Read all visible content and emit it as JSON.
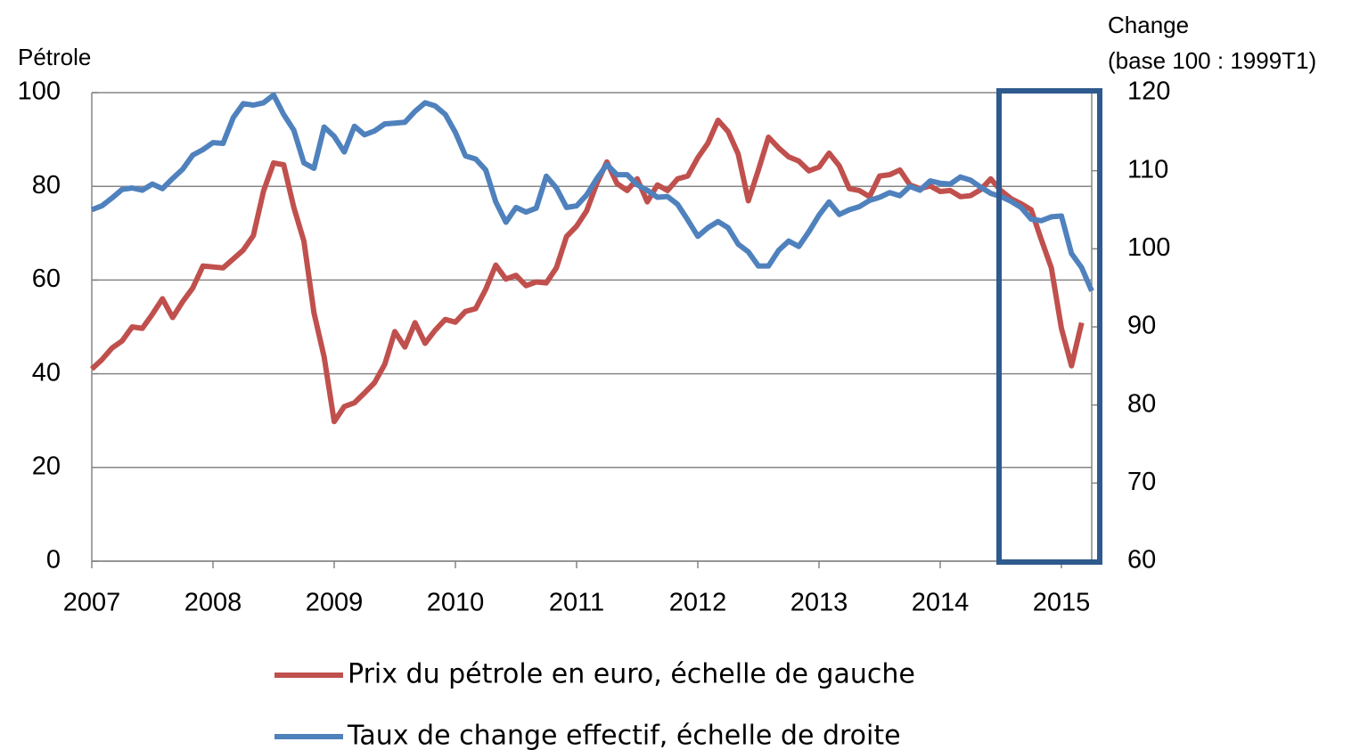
{
  "chart_data": {
    "type": "line",
    "ylabel": "Pétrole",
    "y2label": [
      "Change",
      "(base 100 : 1999T1)"
    ],
    "x": [
      2007,
      2007.083,
      2007.167,
      2007.25,
      2007.333,
      2007.417,
      2007.5,
      2007.583,
      2007.667,
      2007.75,
      2007.833,
      2007.917,
      2008,
      2008.083,
      2008.167,
      2008.25,
      2008.333,
      2008.417,
      2008.5,
      2008.583,
      2008.667,
      2008.75,
      2008.833,
      2008.917,
      2009,
      2009.083,
      2009.167,
      2009.25,
      2009.333,
      2009.417,
      2009.5,
      2009.583,
      2009.667,
      2009.75,
      2009.833,
      2009.917,
      2010,
      2010.083,
      2010.167,
      2010.25,
      2010.333,
      2010.417,
      2010.5,
      2010.583,
      2010.667,
      2010.75,
      2010.833,
      2010.917,
      2011,
      2011.083,
      2011.167,
      2011.25,
      2011.333,
      2011.417,
      2011.5,
      2011.583,
      2011.667,
      2011.75,
      2011.833,
      2011.917,
      2012,
      2012.083,
      2012.167,
      2012.25,
      2012.333,
      2012.417,
      2012.5,
      2012.583,
      2012.667,
      2012.75,
      2012.833,
      2012.917,
      2013,
      2013.083,
      2013.167,
      2013.25,
      2013.333,
      2013.417,
      2013.5,
      2013.583,
      2013.667,
      2013.75,
      2013.833,
      2013.917,
      2014,
      2014.083,
      2014.167,
      2014.25,
      2014.333,
      2014.417,
      2014.5,
      2014.583,
      2014.667,
      2014.75,
      2014.833,
      2014.917,
      2015,
      2015.083,
      2015.167,
      2015.25
    ],
    "series": [
      {
        "name": "Prix du pétrole en euro, échelle de gauche",
        "color": "#c0504d",
        "axis": "y",
        "values": [
          41,
          43,
          45.5,
          47,
          50,
          49.7,
          52.7,
          56,
          52,
          55.4,
          58.3,
          63,
          62.8,
          62.6,
          64.5,
          66.4,
          69.5,
          79,
          85,
          84.6,
          75.5,
          68.3,
          53,
          43.6,
          29.8,
          33,
          33.8,
          35.9,
          38.1,
          42,
          49,
          45.7,
          50.9,
          46.5,
          49.3,
          51.6,
          51,
          53.3,
          53.9,
          58,
          63.2,
          60.2,
          61,
          58.8,
          59.6,
          59.4,
          62.6,
          69.3,
          71.5,
          74.8,
          80.6,
          85.2,
          80.6,
          79.1,
          81.6,
          76.7,
          80.3,
          79.1,
          81.6,
          82.2,
          86.1,
          89.2,
          94.1,
          91.7,
          86.9,
          76.9,
          83.5,
          90.5,
          88.2,
          86.3,
          85.4,
          83.3,
          84.1,
          87.1,
          84.4,
          79.5,
          79.1,
          77.8,
          82.2,
          82.5,
          83.5,
          80.3,
          79.5,
          80.1,
          78.9,
          79.1,
          77.8,
          78,
          79.3,
          81.6,
          79.1,
          77.4,
          76.3,
          75,
          68.7,
          62.6,
          49.7,
          41.7,
          50.9,
          null
        ]
      },
      {
        "name": "Taux de change effectif, échelle de droite",
        "color": "#4f81bd",
        "axis": "y2",
        "values": [
          105,
          105.5,
          106.5,
          107.6,
          107.8,
          107.5,
          108.3,
          107.7,
          109,
          110.2,
          112,
          112.7,
          113.6,
          113.5,
          116.8,
          118.6,
          118.4,
          118.7,
          119.7,
          117.2,
          115.2,
          111,
          110.3,
          115.6,
          114.4,
          112.4,
          115.7,
          114.6,
          115.1,
          116,
          116.1,
          116.2,
          117.6,
          118.7,
          118.3,
          117.2,
          114.9,
          111.9,
          111.5,
          110.1,
          106,
          103.4,
          105.3,
          104.7,
          105.2,
          109.3,
          107.8,
          105.3,
          105.5,
          106.9,
          109,
          110.8,
          109.5,
          109.5,
          108.2,
          107.5,
          106.6,
          106.7,
          105.7,
          103.7,
          101.6,
          102.7,
          103.5,
          102.7,
          100.6,
          99.6,
          97.8,
          97.8,
          99.8,
          101,
          100.3,
          102.2,
          104.3,
          106,
          104.4,
          105,
          105.4,
          106.2,
          106.6,
          107.2,
          106.8,
          108,
          107.5,
          108.7,
          108.4,
          108.3,
          109.2,
          108.8,
          107.9,
          107.1,
          106.7,
          106.1,
          105.3,
          103.8,
          103.6,
          104.1,
          104.2,
          99.4,
          97.6,
          94.6
        ]
      }
    ],
    "xlim": [
      2007,
      2015.25
    ],
    "xticks": [
      2007,
      2008,
      2009,
      2010,
      2011,
      2012,
      2013,
      2014,
      2015
    ],
    "ylim": [
      0,
      100
    ],
    "yticks": [
      0,
      20,
      40,
      60,
      80,
      100
    ],
    "y2lim": [
      60,
      120
    ],
    "y2ticks": [
      60,
      70,
      80,
      90,
      100,
      110,
      120
    ],
    "grid": true
  }
}
